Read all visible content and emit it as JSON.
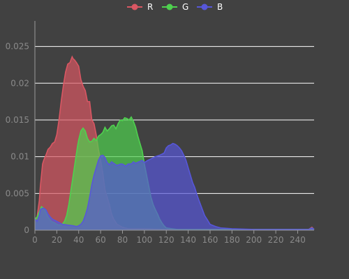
{
  "chart_data": {
    "type": "area",
    "title": "",
    "xlabel": "",
    "ylabel": "",
    "xlim": [
      0,
      255
    ],
    "ylim": [
      0,
      0.028
    ],
    "grid": true,
    "legend_position": "top-center",
    "x_ticks": [
      0,
      20,
      40,
      60,
      80,
      100,
      120,
      140,
      160,
      180,
      200,
      220,
      240
    ],
    "y_ticks": [
      0,
      0.005,
      0.01,
      0.015,
      0.02,
      0.025
    ],
    "y_tick_labels": [
      "0",
      "0.005",
      "0.01",
      "0.015",
      "0.02",
      "0.025"
    ],
    "series": [
      {
        "name": "R",
        "color": "#d95763",
        "x": [
          0,
          2,
          4,
          5,
          7,
          8,
          10,
          12,
          14,
          16,
          18,
          20,
          22,
          24,
          26,
          28,
          30,
          32,
          34,
          35,
          36,
          38,
          40,
          42,
          44,
          46,
          48,
          50,
          52,
          54,
          56,
          58,
          60,
          62,
          64,
          66,
          68,
          70,
          72,
          75,
          80,
          85,
          90,
          100,
          120,
          140,
          160,
          180,
          200,
          220,
          240,
          250,
          253,
          255
        ],
        "values": [
          0.0015,
          0.0018,
          0.004,
          0.006,
          0.009,
          0.0095,
          0.0102,
          0.011,
          0.0113,
          0.0118,
          0.012,
          0.013,
          0.015,
          0.0175,
          0.0197,
          0.0215,
          0.0226,
          0.0228,
          0.0236,
          0.0233,
          0.0232,
          0.0228,
          0.0223,
          0.0205,
          0.0196,
          0.019,
          0.0175,
          0.0175,
          0.015,
          0.0145,
          0.013,
          0.011,
          0.0095,
          0.0078,
          0.0055,
          0.0045,
          0.0035,
          0.0022,
          0.0015,
          0.0008,
          0.0004,
          0.0002,
          0.0002,
          0.0002,
          0.0001,
          0.0001,
          0.0001,
          0.0001,
          0.0001,
          0.0001,
          0.0001,
          0.0001,
          0.0004,
          0.0001
        ]
      },
      {
        "name": "G",
        "color": "#4fd14f",
        "x": [
          0,
          2,
          4,
          6,
          8,
          10,
          12,
          15,
          18,
          20,
          22,
          25,
          27,
          29,
          31,
          33,
          35,
          37,
          39,
          40,
          42,
          44,
          46,
          48,
          50,
          52,
          54,
          56,
          58,
          60,
          62,
          64,
          66,
          68,
          70,
          72,
          74,
          76,
          78,
          80,
          82,
          84,
          86,
          88,
          90,
          92,
          94,
          96,
          98,
          100,
          102,
          104,
          106,
          108,
          110,
          112,
          114,
          116,
          118,
          120,
          125,
          130,
          140,
          150,
          160,
          180,
          200,
          220,
          240,
          250,
          253,
          255
        ],
        "values": [
          0.0015,
          0.0018,
          0.0025,
          0.0032,
          0.003,
          0.0025,
          0.0018,
          0.0012,
          0.001,
          0.0008,
          0.0007,
          0.0008,
          0.0012,
          0.002,
          0.0035,
          0.0055,
          0.0075,
          0.0095,
          0.0115,
          0.0123,
          0.0135,
          0.0139,
          0.0135,
          0.0125,
          0.012,
          0.0121,
          0.0125,
          0.0122,
          0.0128,
          0.013,
          0.0133,
          0.014,
          0.0135,
          0.0138,
          0.0142,
          0.0143,
          0.0138,
          0.0145,
          0.015,
          0.0149,
          0.0153,
          0.0152,
          0.015,
          0.0154,
          0.0148,
          0.014,
          0.0128,
          0.0118,
          0.0108,
          0.009,
          0.0075,
          0.006,
          0.0045,
          0.0035,
          0.0028,
          0.0022,
          0.0015,
          0.001,
          0.0006,
          0.0003,
          0.0002,
          0.0001,
          0.0001,
          0.0001,
          0.0001,
          0.0001,
          0.0001,
          0.0001,
          0.0001,
          0.0001,
          0.0003,
          0.0001
        ]
      },
      {
        "name": "B",
        "color": "#5757d9",
        "x": [
          0,
          2,
          4,
          5,
          7,
          8,
          10,
          12,
          14,
          16,
          20,
          25,
          30,
          35,
          38,
          40,
          42,
          44,
          46,
          48,
          50,
          52,
          54,
          56,
          58,
          60,
          62,
          64,
          66,
          68,
          70,
          72,
          75,
          78,
          80,
          83,
          85,
          88,
          90,
          92,
          95,
          98,
          100,
          103,
          106,
          110,
          114,
          118,
          120,
          122,
          124,
          126,
          128,
          130,
          132,
          134,
          136,
          138,
          140,
          142,
          144,
          146,
          148,
          150,
          152,
          155,
          158,
          160,
          165,
          170,
          180,
          200,
          220,
          240,
          250,
          253,
          255
        ],
        "values": [
          0.0015,
          0.0012,
          0.002,
          0.0028,
          0.003,
          0.003,
          0.0028,
          0.0022,
          0.0018,
          0.0015,
          0.0012,
          0.0008,
          0.0007,
          0.0006,
          0.0005,
          0.0006,
          0.0008,
          0.0012,
          0.002,
          0.003,
          0.0045,
          0.0062,
          0.0075,
          0.0085,
          0.0095,
          0.0101,
          0.0102,
          0.0099,
          0.0092,
          0.0089,
          0.0093,
          0.0091,
          0.0088,
          0.009,
          0.009,
          0.0087,
          0.009,
          0.009,
          0.0093,
          0.0091,
          0.0093,
          0.0095,
          0.0092,
          0.0095,
          0.0097,
          0.01,
          0.0102,
          0.0105,
          0.0112,
          0.0115,
          0.0116,
          0.0118,
          0.0117,
          0.0115,
          0.0112,
          0.0108,
          0.0102,
          0.0095,
          0.0085,
          0.0075,
          0.0065,
          0.0058,
          0.0048,
          0.004,
          0.0032,
          0.002,
          0.0013,
          0.0008,
          0.0005,
          0.0003,
          0.0002,
          0.0001,
          0.0001,
          0.0001,
          0.0001,
          0.0003,
          0.0001
        ]
      }
    ]
  }
}
